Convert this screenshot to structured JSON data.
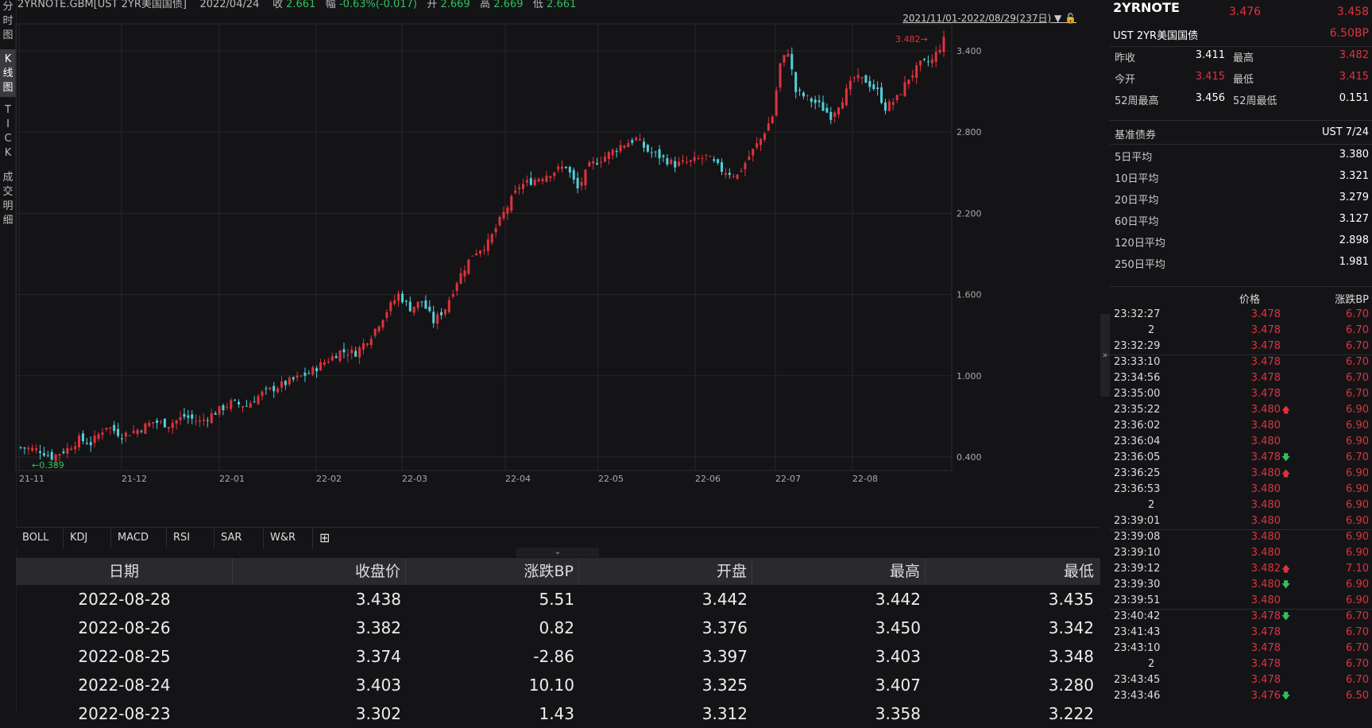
{
  "left_tabs": [
    "分\n时\n图",
    "K\n线\n图",
    "T\nI\nC\nK",
    "成\n交\n明\n细"
  ],
  "header": {
    "symbol": "2YRNOTE.GBM[UST 2YR美国国债]",
    "date": "2022/04/24",
    "close_label": "收",
    "close": "2.661",
    "change_label": "幅",
    "change": "-0.63%(-0.017)",
    "open_label": "开",
    "open": "2.669",
    "high_label": "高",
    "high": "2.669",
    "low_label": "低",
    "low": "2.661"
  },
  "range_label": "2021/11/01-2022/08/29(237日)",
  "colors": {
    "up": "#e0323c",
    "down": "#4fd1d9",
    "green": "#2fc25b",
    "bg": "#141417"
  },
  "chart_data": {
    "type": "candlestick",
    "ylim": [
      0.3,
      3.6
    ],
    "y_ticks": [
      "0.400",
      "1.000",
      "1.600",
      "2.200",
      "2.800",
      "3.400"
    ],
    "x_ticks": [
      "21-11",
      "21-12",
      "22-01",
      "22-02",
      "22-03",
      "22-04",
      "22-05",
      "22-06",
      "22-07",
      "22-08"
    ],
    "max_label": "3.482",
    "min_label": "0.389",
    "path": [
      [
        0,
        0.47
      ],
      [
        5,
        0.45
      ],
      [
        8,
        0.4
      ],
      [
        12,
        0.46
      ],
      [
        15,
        0.53
      ],
      [
        18,
        0.5
      ],
      [
        22,
        0.63
      ],
      [
        26,
        0.56
      ],
      [
        30,
        0.6
      ],
      [
        34,
        0.66
      ],
      [
        38,
        0.64
      ],
      [
        42,
        0.7
      ],
      [
        46,
        0.66
      ],
      [
        50,
        0.73
      ],
      [
        54,
        0.8
      ],
      [
        58,
        0.78
      ],
      [
        62,
        0.87
      ],
      [
        66,
        0.92
      ],
      [
        70,
        0.97
      ],
      [
        74,
        1.02
      ],
      [
        78,
        1.1
      ],
      [
        82,
        1.18
      ],
      [
        86,
        1.17
      ],
      [
        90,
        1.3
      ],
      [
        94,
        1.48
      ],
      [
        97,
        1.6
      ],
      [
        100,
        1.5
      ],
      [
        103,
        1.55
      ],
      [
        106,
        1.4
      ],
      [
        109,
        1.5
      ],
      [
        112,
        1.7
      ],
      [
        116,
        1.9
      ],
      [
        120,
        1.98
      ],
      [
        124,
        2.2
      ],
      [
        128,
        2.4
      ],
      [
        132,
        2.45
      ],
      [
        136,
        2.5
      ],
      [
        140,
        2.55
      ],
      [
        143,
        2.38
      ],
      [
        146,
        2.55
      ],
      [
        150,
        2.62
      ],
      [
        154,
        2.7
      ],
      [
        158,
        2.75
      ],
      [
        161,
        2.66
      ],
      [
        164,
        2.62
      ],
      [
        168,
        2.56
      ],
      [
        172,
        2.58
      ],
      [
        176,
        2.62
      ],
      [
        180,
        2.52
      ],
      [
        184,
        2.48
      ],
      [
        187,
        2.62
      ],
      [
        190,
        2.75
      ],
      [
        193,
        2.92
      ],
      [
        195,
        3.3
      ],
      [
        197,
        3.4
      ],
      [
        199,
        3.1
      ],
      [
        202,
        3.05
      ],
      [
        205,
        3.0
      ],
      [
        208,
        2.92
      ],
      [
        211,
        3.05
      ],
      [
        214,
        3.2
      ],
      [
        217,
        3.18
      ],
      [
        220,
        3.1
      ],
      [
        222,
        2.98
      ],
      [
        225,
        3.05
      ],
      [
        228,
        3.2
      ],
      [
        231,
        3.3
      ],
      [
        234,
        3.33
      ],
      [
        237,
        3.48
      ]
    ],
    "n": 238
  },
  "indicators": [
    "BOLL",
    "KDJ",
    "MACD",
    "RSI",
    "SAR",
    "W&R"
  ],
  "indicator_add": "⊞",
  "collapse_icon": "⌄",
  "table": {
    "headers": [
      "日期",
      "收盘价",
      "涨跌BP",
      "开盘",
      "最高",
      "最低"
    ],
    "rows": [
      [
        "2022-08-28",
        "3.438",
        "5.51",
        "3.442",
        "3.442",
        "3.435"
      ],
      [
        "2022-08-26",
        "3.382",
        "0.82",
        "3.376",
        "3.450",
        "3.342"
      ],
      [
        "2022-08-25",
        "3.374",
        "-2.86",
        "3.397",
        "3.403",
        "3.348"
      ],
      [
        "2022-08-24",
        "3.403",
        "10.10",
        "3.325",
        "3.407",
        "3.280"
      ],
      [
        "2022-08-23",
        "3.302",
        "1.43",
        "3.312",
        "3.358",
        "3.222"
      ]
    ]
  },
  "panel": {
    "symbol": "2YRNOTE",
    "price": "3.476",
    "price2": "3.458",
    "name": "UST 2YR美国国债",
    "change_bp": "6.50BP",
    "stats": [
      {
        "l1": "昨收",
        "v1": "3.411",
        "c1": "#ffffff",
        "l2": "最高",
        "v2": "3.482",
        "c2": "#e0323c"
      },
      {
        "l1": "今开",
        "v1": "3.415",
        "c1": "#e0323c",
        "l2": "最低",
        "v2": "3.415",
        "c2": "#e0323c"
      },
      {
        "l1": "52周最高",
        "v1": "3.456",
        "c1": "#ffffff",
        "l2": "52周最低",
        "v2": "0.151",
        "c2": "#ffffff"
      }
    ],
    "benchmark_label": "基准债券",
    "benchmark_value": "UST 7/24",
    "averages": [
      {
        "label": "5日平均",
        "value": "3.380"
      },
      {
        "label": "10日平均",
        "value": "3.321"
      },
      {
        "label": "20日平均",
        "value": "3.279"
      },
      {
        "label": "60日平均",
        "value": "3.127"
      },
      {
        "label": "120日平均",
        "value": "2.898"
      },
      {
        "label": "250日平均",
        "value": "1.981"
      }
    ],
    "tick_headers": {
      "price": "价格",
      "bp": "涨跌BP"
    },
    "ticks": [
      {
        "time": "23:32:27",
        "price": "3.478",
        "arrow": "",
        "bp": "6.70"
      },
      {
        "time": "2",
        "price": "3.478",
        "arrow": "",
        "bp": "6.70"
      },
      {
        "time": "23:32:29",
        "price": "3.478",
        "arrow": "",
        "bp": "6.70"
      },
      {
        "time": "23:33:10",
        "price": "3.478",
        "arrow": "",
        "bp": "6.70"
      },
      {
        "time": "23:34:56",
        "price": "3.478",
        "arrow": "",
        "bp": "6.70"
      },
      {
        "time": "23:35:00",
        "price": "3.478",
        "arrow": "",
        "bp": "6.70"
      },
      {
        "time": "23:35:22",
        "price": "3.480",
        "arrow": "up",
        "bp": "6.90"
      },
      {
        "time": "23:36:02",
        "price": "3.480",
        "arrow": "",
        "bp": "6.90"
      },
      {
        "time": "23:36:04",
        "price": "3.480",
        "arrow": "",
        "bp": "6.90"
      },
      {
        "time": "23:36:05",
        "price": "3.478",
        "arrow": "down",
        "bp": "6.70"
      },
      {
        "time": "23:36:25",
        "price": "3.480",
        "arrow": "up",
        "bp": "6.90"
      },
      {
        "time": "23:36:53",
        "price": "3.480",
        "arrow": "",
        "bp": "6.90"
      },
      {
        "time": "2",
        "price": "3.480",
        "arrow": "",
        "bp": "6.90"
      },
      {
        "time": "23:39:01",
        "price": "3.480",
        "arrow": "",
        "bp": "6.90"
      },
      {
        "time": "23:39:08",
        "price": "3.480",
        "arrow": "",
        "bp": "6.90"
      },
      {
        "time": "23:39:10",
        "price": "3.480",
        "arrow": "",
        "bp": "6.90"
      },
      {
        "time": "23:39:12",
        "price": "3.482",
        "arrow": "up",
        "bp": "7.10"
      },
      {
        "time": "23:39:30",
        "price": "3.480",
        "arrow": "down",
        "bp": "6.90"
      },
      {
        "time": "23:39:51",
        "price": "3.480",
        "arrow": "",
        "bp": "6.90"
      },
      {
        "time": "23:40:42",
        "price": "3.478",
        "arrow": "down",
        "bp": "6.70"
      },
      {
        "time": "23:41:43",
        "price": "3.478",
        "arrow": "",
        "bp": "6.70"
      },
      {
        "time": "23:43:10",
        "price": "3.478",
        "arrow": "",
        "bp": "6.70"
      },
      {
        "time": "2",
        "price": "3.478",
        "arrow": "",
        "bp": "6.70"
      },
      {
        "time": "23:43:45",
        "price": "3.478",
        "arrow": "",
        "bp": "6.70"
      },
      {
        "time": "23:43:46",
        "price": "3.476",
        "arrow": "down",
        "bp": "6.50"
      }
    ]
  }
}
